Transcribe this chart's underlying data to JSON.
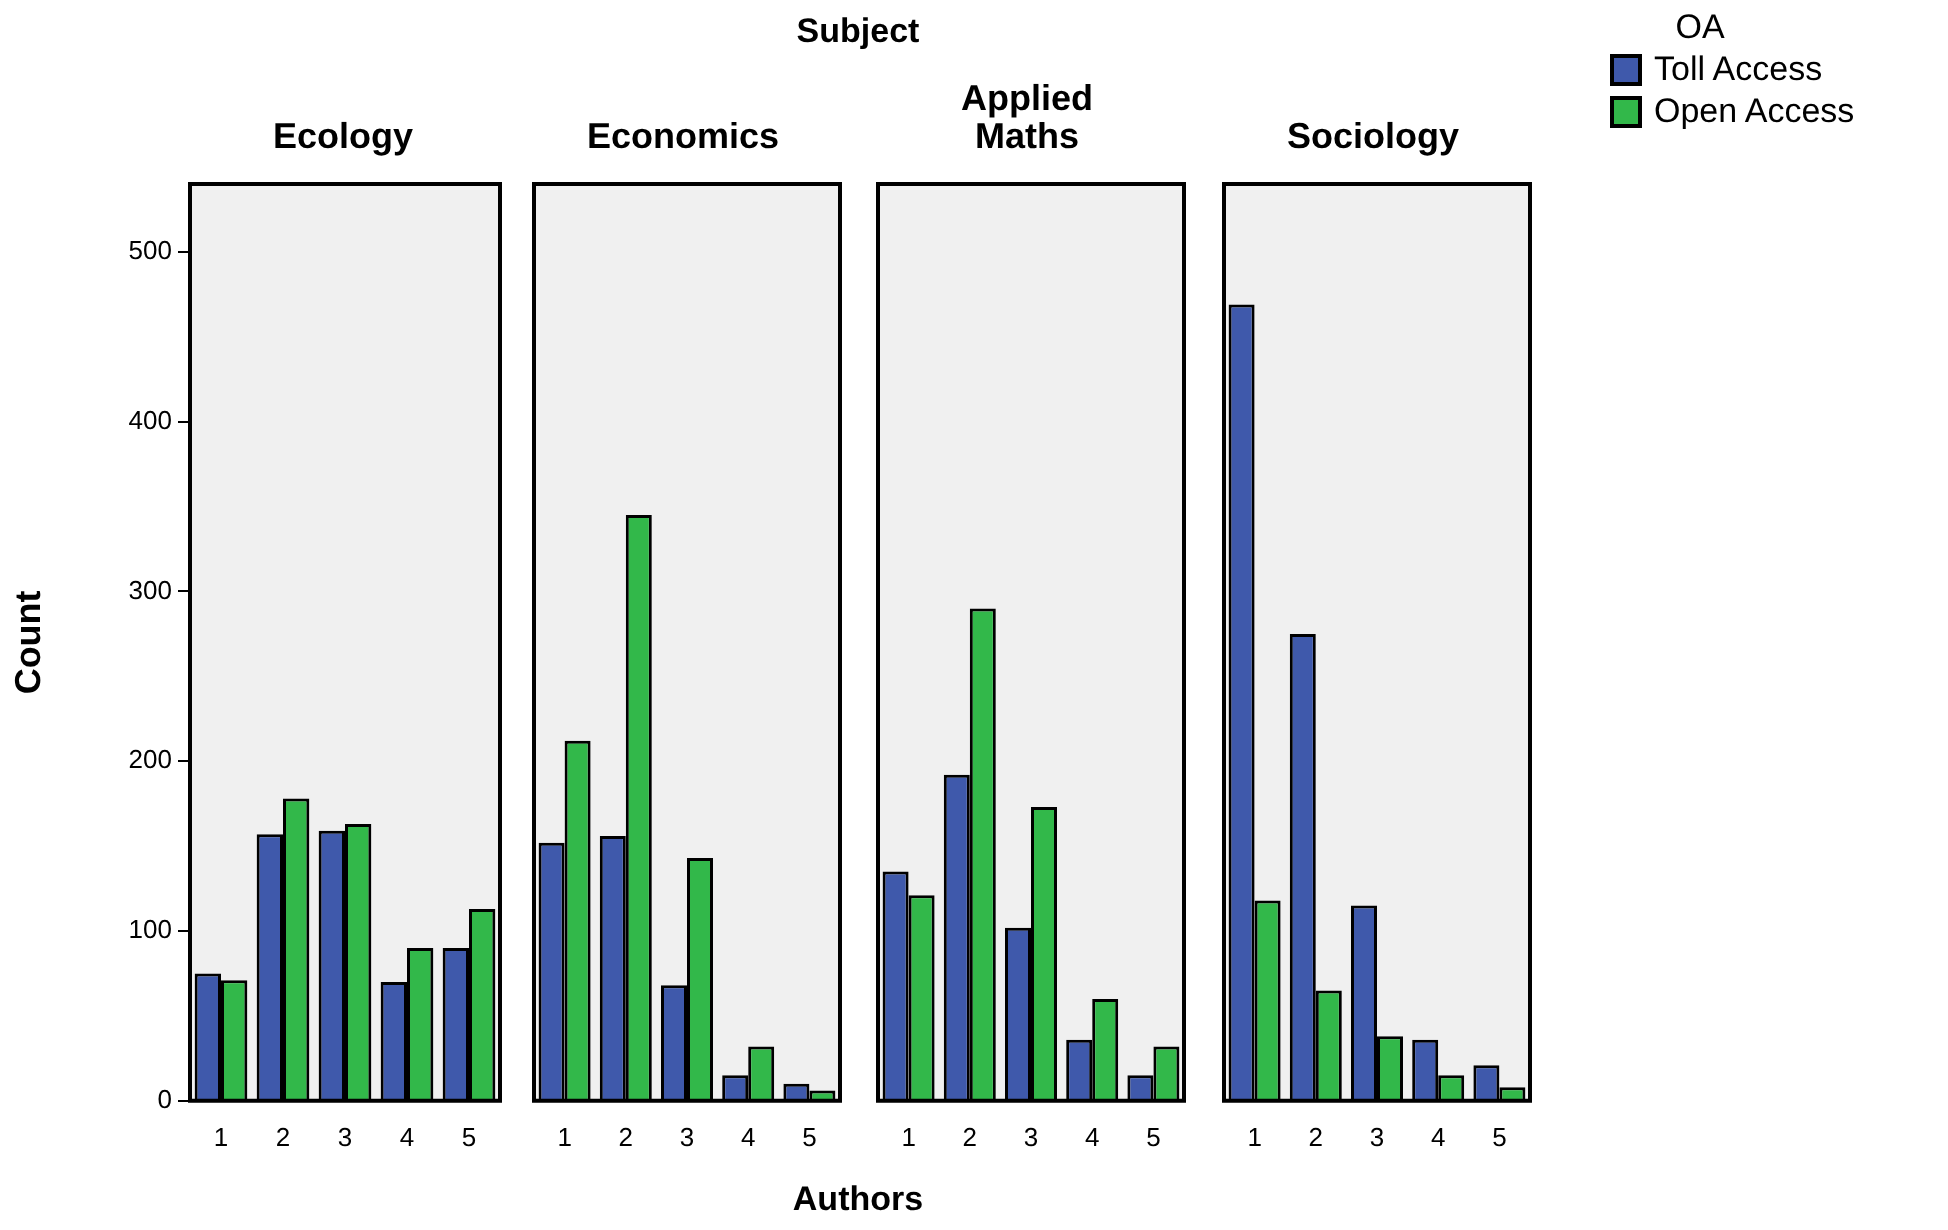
{
  "chart_data": [
    {
      "type": "bar",
      "title": "Ecology",
      "ylabel": "Count",
      "annotations": [
        "Subject"
      ],
      "categories": [
        "1",
        "2",
        "3",
        "4",
        "5"
      ],
      "ylim": [
        0,
        540
      ],
      "yticks": [
        0,
        100,
        200,
        300,
        400,
        500
      ],
      "grid": false,
      "series": [
        {
          "color": "#3f59ab",
          "values": [
            75,
            157,
            159,
            70,
            90
          ]
        },
        {
          "color": "#32b84a",
          "values": [
            71,
            178,
            163,
            90,
            113
          ]
        }
      ]
    },
    {
      "type": "bar",
      "title": "Economics",
      "categories": [
        "1",
        "2",
        "3",
        "4",
        "5"
      ],
      "ylim": [
        0,
        540
      ],
      "tick_labels": "x",
      "grid": false,
      "series": [
        {
          "color": "#3f59ab",
          "values": [
            152,
            156,
            68,
            15,
            10
          ]
        },
        {
          "color": "#32b84a",
          "values": [
            212,
            345,
            143,
            32,
            6
          ]
        }
      ]
    },
    {
      "type": "bar",
      "title": "Applied Maths",
      "xlabel": "Authors",
      "categories": [
        "1",
        "2",
        "3",
        "4",
        "5"
      ],
      "ylim": [
        0,
        540
      ],
      "tick_labels": "x",
      "grid": false,
      "series": [
        {
          "color": "#3f59ab",
          "values": [
            135,
            192,
            102,
            36,
            15
          ]
        },
        {
          "color": "#32b84a",
          "values": [
            121,
            290,
            173,
            60,
            32
          ]
        }
      ]
    },
    {
      "type": "bar",
      "title": "Sociology",
      "categories": [
        "1",
        "2",
        "3",
        "4",
        "5"
      ],
      "ylim": [
        0,
        540
      ],
      "tick_labels": "x",
      "grid": false,
      "legend": "top right",
      "legend_title": "OA",
      "series": [
        {
          "name": "Toll Access",
          "color": "#3f59ab",
          "values": [
            469,
            275,
            115,
            36,
            21
          ]
        },
        {
          "name": "Open Access",
          "color": "#32b84a",
          "values": [
            118,
            65,
            38,
            15,
            8
          ]
        }
      ]
    }
  ]
}
